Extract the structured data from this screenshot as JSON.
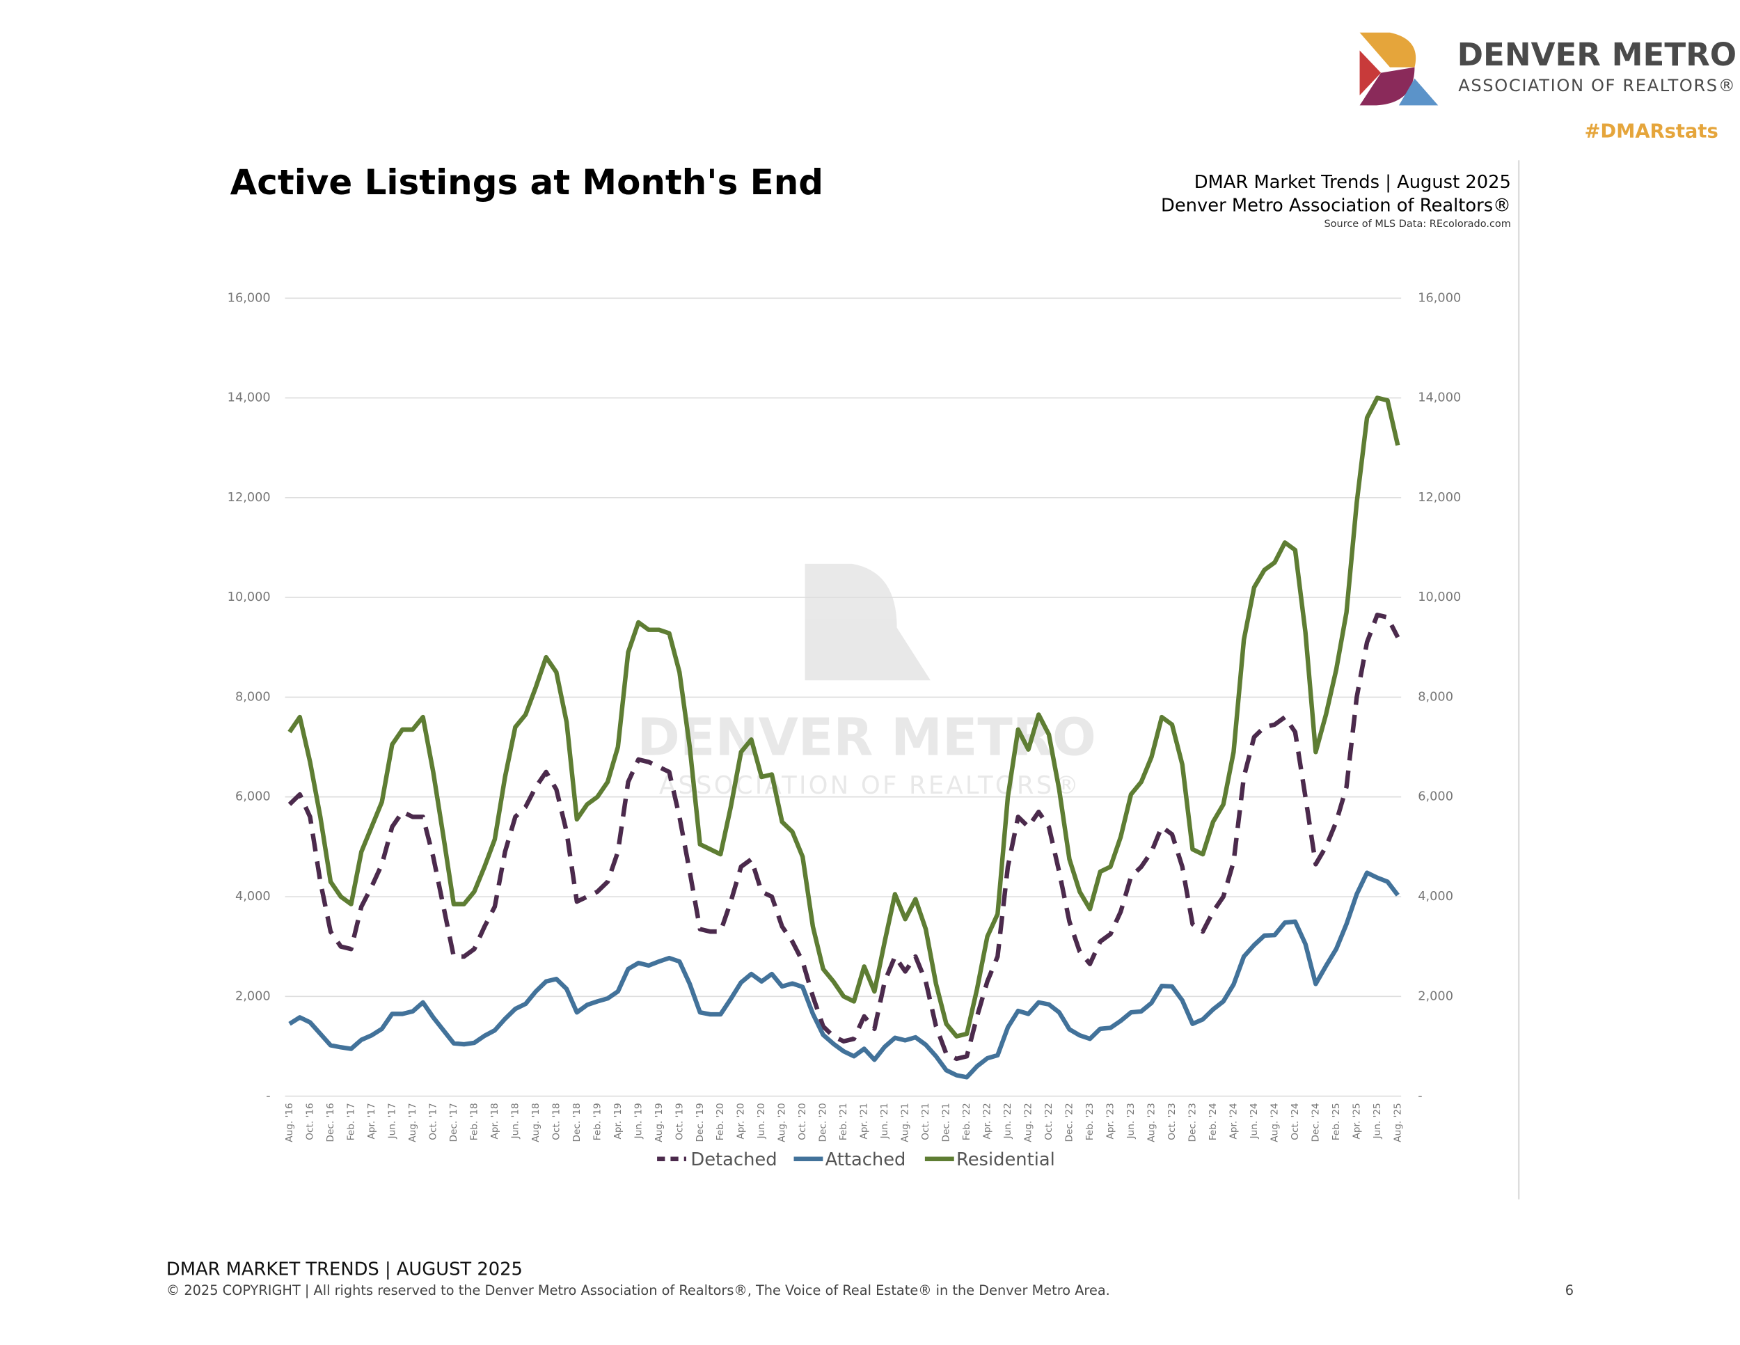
{
  "header": {
    "logo_name": "DENVER METRO",
    "logo_sub": "ASSOCIATION OF REALTORS®",
    "hashtag": "#DMARstats",
    "report": "DMAR Market Trends | August 2025",
    "org": "Denver Metro Association of Realtors®",
    "source": "Source of MLS Data: REcolorado.com"
  },
  "watermark": {
    "name": "DENVER METRO",
    "sub": "ASSOCIATION OF REALTORS®"
  },
  "footer": {
    "title": "DMAR MARKET TRENDS | AUGUST 2025",
    "copyright": "© 2025 COPYRIGHT | All rights reserved to the Denver Metro Association of Realtors®, The Voice of Real Estate® in the Denver Metro Area.",
    "page": "6"
  },
  "chart_data": {
    "type": "line",
    "title": "Active Listings at Month's End",
    "categories": [
      "Aug. '16",
      null,
      "Oct. '16",
      null,
      "Dec. '16",
      null,
      "Feb. '17",
      null,
      "Apr. '17",
      null,
      "Jun. '17",
      null,
      "Aug. '17",
      null,
      "Oct. '17",
      null,
      "Dec. '17",
      null,
      "Feb. '18",
      null,
      "Apr. '18",
      null,
      "Jun. '18",
      null,
      "Aug. '18",
      null,
      "Oct. '18",
      null,
      "Dec. '18",
      null,
      "Feb. '19",
      null,
      "Apr. '19",
      null,
      "Jun. '19",
      null,
      "Aug. '19",
      null,
      "Oct. '19",
      null,
      "Dec. '19",
      null,
      "Feb. '20",
      null,
      "Apr. '20",
      null,
      "Jun. '20",
      null,
      "Aug. '20",
      null,
      "Oct. '20",
      null,
      "Dec. '20",
      null,
      "Feb. '21",
      null,
      "Apr. '21",
      null,
      "Jun. '21",
      null,
      "Aug. '21",
      null,
      "Oct. '21",
      null,
      "Dec. '21",
      null,
      "Feb. '22",
      null,
      "Apr. '22",
      null,
      "Jun. '22",
      null,
      "Aug. '22",
      null,
      "Oct. '22",
      null,
      "Dec. '22",
      null,
      "Feb. '23",
      null,
      "Apr. '23",
      null,
      "Jun. '23",
      null,
      "Aug. '23",
      null,
      "Oct. '23",
      null,
      "Dec. '23",
      null,
      "Feb. '24",
      null,
      "Apr. '24",
      null,
      "Jun. '24",
      null,
      "Aug. '24",
      null,
      "Oct. '24",
      null,
      "Dec. '24",
      null,
      "Feb. '25",
      null,
      "Apr. '25",
      null,
      "Jun. '25",
      null,
      "Aug. '25"
    ],
    "series": [
      {
        "name": "Detached",
        "color": "#4b2a4c",
        "dashed": true,
        "values": [
          5850,
          6050,
          5600,
          4300,
          3300,
          3000,
          2950,
          3800,
          4200,
          4650,
          5400,
          5700,
          5600,
          5600,
          4800,
          3800,
          2800,
          2800,
          2950,
          3400,
          3800,
          4900,
          5600,
          5800,
          6200,
          6500,
          6150,
          5300,
          3900,
          4000,
          4100,
          4300,
          4900,
          6300,
          6750,
          6700,
          6600,
          6500,
          5600,
          4500,
          3350,
          3300,
          3300,
          3900,
          4600,
          4750,
          4100,
          4000,
          3400,
          3100,
          2700,
          2000,
          1400,
          1200,
          1100,
          1150,
          1600,
          1350,
          2300,
          2800,
          2500,
          2800,
          2300,
          1400,
          850,
          750,
          800,
          1600,
          2300,
          2800,
          4600,
          5600,
          5400,
          5700,
          5400,
          4500,
          3500,
          2900,
          2650,
          3100,
          3250,
          3700,
          4400,
          4600,
          4900,
          5400,
          5250,
          4600,
          3450,
          3300,
          3700,
          4000,
          4700,
          6400,
          7200,
          7400,
          7450,
          7600,
          7300,
          6000,
          4650,
          5000,
          5500,
          6200,
          8000,
          9100,
          9650,
          9600,
          9200
        ]
      },
      {
        "name": "Attached",
        "color": "#42729a",
        "dashed": false,
        "values": [
          1450,
          1580,
          1480,
          1250,
          1020,
          980,
          950,
          1130,
          1220,
          1350,
          1650,
          1650,
          1700,
          1880,
          1580,
          1320,
          1060,
          1040,
          1070,
          1210,
          1320,
          1550,
          1750,
          1850,
          2100,
          2300,
          2350,
          2150,
          1680,
          1830,
          1900,
          1960,
          2100,
          2550,
          2670,
          2620,
          2700,
          2770,
          2700,
          2250,
          1680,
          1640,
          1640,
          1950,
          2280,
          2450,
          2300,
          2450,
          2200,
          2260,
          2190,
          1650,
          1230,
          1050,
          900,
          800,
          950,
          730,
          990,
          1170,
          1120,
          1180,
          1030,
          800,
          520,
          420,
          380,
          600,
          760,
          820,
          1380,
          1710,
          1650,
          1880,
          1840,
          1680,
          1340,
          1220,
          1150,
          1350,
          1370,
          1510,
          1680,
          1700,
          1870,
          2210,
          2200,
          1920,
          1450,
          1540,
          1740,
          1900,
          2240,
          2800,
          3030,
          3220,
          3230,
          3480,
          3500,
          3050,
          2250,
          2610,
          2950,
          3450,
          4050,
          4480,
          4380,
          4300,
          4030
        ]
      },
      {
        "name": "Residential",
        "color": "#5e7d33",
        "dashed": false,
        "values": [
          7300,
          7600,
          6700,
          5600,
          4300,
          4000,
          3850,
          4900,
          5400,
          5900,
          7050,
          7350,
          7350,
          7600,
          6500,
          5200,
          3850,
          3850,
          4100,
          4600,
          5150,
          6400,
          7400,
          7650,
          8200,
          8800,
          8500,
          7500,
          5550,
          5850,
          6000,
          6300,
          7000,
          8900,
          9500,
          9350,
          9350,
          9280,
          8500,
          7000,
          5050,
          4950,
          4850,
          5800,
          6900,
          7150,
          6400,
          6450,
          5500,
          5300,
          4800,
          3400,
          2550,
          2300,
          2000,
          1900,
          2600,
          2100,
          3100,
          4050,
          3550,
          3950,
          3350,
          2250,
          1450,
          1200,
          1250,
          2150,
          3200,
          3650,
          6000,
          7350,
          6950,
          7650,
          7250,
          6150,
          4750,
          4100,
          3750,
          4500,
          4600,
          5200,
          6050,
          6300,
          6800,
          7600,
          7450,
          6650,
          4950,
          4850,
          5500,
          5850,
          6900,
          9150,
          10200,
          10550,
          10700,
          11100,
          10950,
          9300,
          6900,
          7650,
          8550,
          9700,
          11900,
          13600,
          14000,
          13950,
          13050
        ]
      }
    ],
    "ylim": [
      0,
      16000
    ],
    "yticks": [
      {
        "value": 0,
        "label": "-"
      },
      {
        "value": 2000,
        "label": "2,000"
      },
      {
        "value": 4000,
        "label": "4,000"
      },
      {
        "value": 6000,
        "label": "6,000"
      },
      {
        "value": 8000,
        "label": "8,000"
      },
      {
        "value": 10000,
        "label": "10,000"
      },
      {
        "value": 12000,
        "label": "12,000"
      },
      {
        "value": 14000,
        "label": "14,000"
      },
      {
        "value": 16000,
        "label": "16,000"
      }
    ],
    "grid": true,
    "legend": "bottom"
  }
}
